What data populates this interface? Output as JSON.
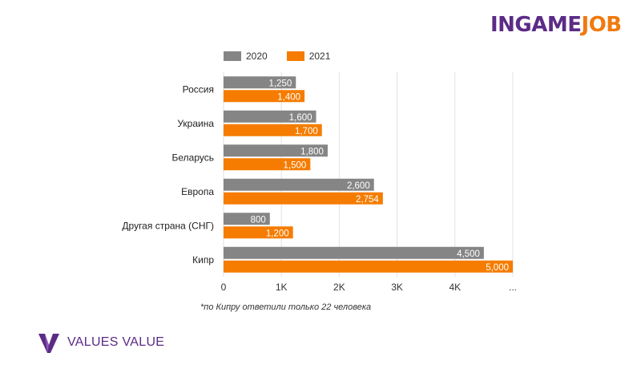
{
  "brand": {
    "part1": "INGAME",
    "part2": "JOB"
  },
  "company": {
    "name": "VALUES VALUE"
  },
  "footnote": "*по Кипру ответили только 22 человека",
  "colors": {
    "series_2020": "#858585",
    "series_2021": "#f57c00"
  },
  "chart_data": {
    "type": "bar",
    "orientation": "horizontal",
    "categories": [
      "Россия",
      "Украина",
      "Беларусь",
      "Европа",
      "Другая страна (СНГ)",
      "Кипр"
    ],
    "series": [
      {
        "name": "2020",
        "values": [
          1250,
          1600,
          1800,
          2600,
          800,
          4500
        ],
        "labels": [
          "1,250",
          "1,600",
          "1,800",
          "2,600",
          "800",
          "4,500"
        ]
      },
      {
        "name": "2021",
        "values": [
          1400,
          1700,
          1500,
          2754,
          1200,
          5000
        ],
        "labels": [
          "1,400",
          "1,700",
          "1,500",
          "2,754",
          "1,200",
          "5,000"
        ]
      }
    ],
    "xlim": [
      0,
      5000
    ],
    "xticks": [
      0,
      1000,
      2000,
      3000,
      4000,
      5000
    ],
    "xtick_labels": [
      "0",
      "1K",
      "2K",
      "3K",
      "4K",
      "..."
    ],
    "grid": true,
    "legend_position": "top-left"
  }
}
